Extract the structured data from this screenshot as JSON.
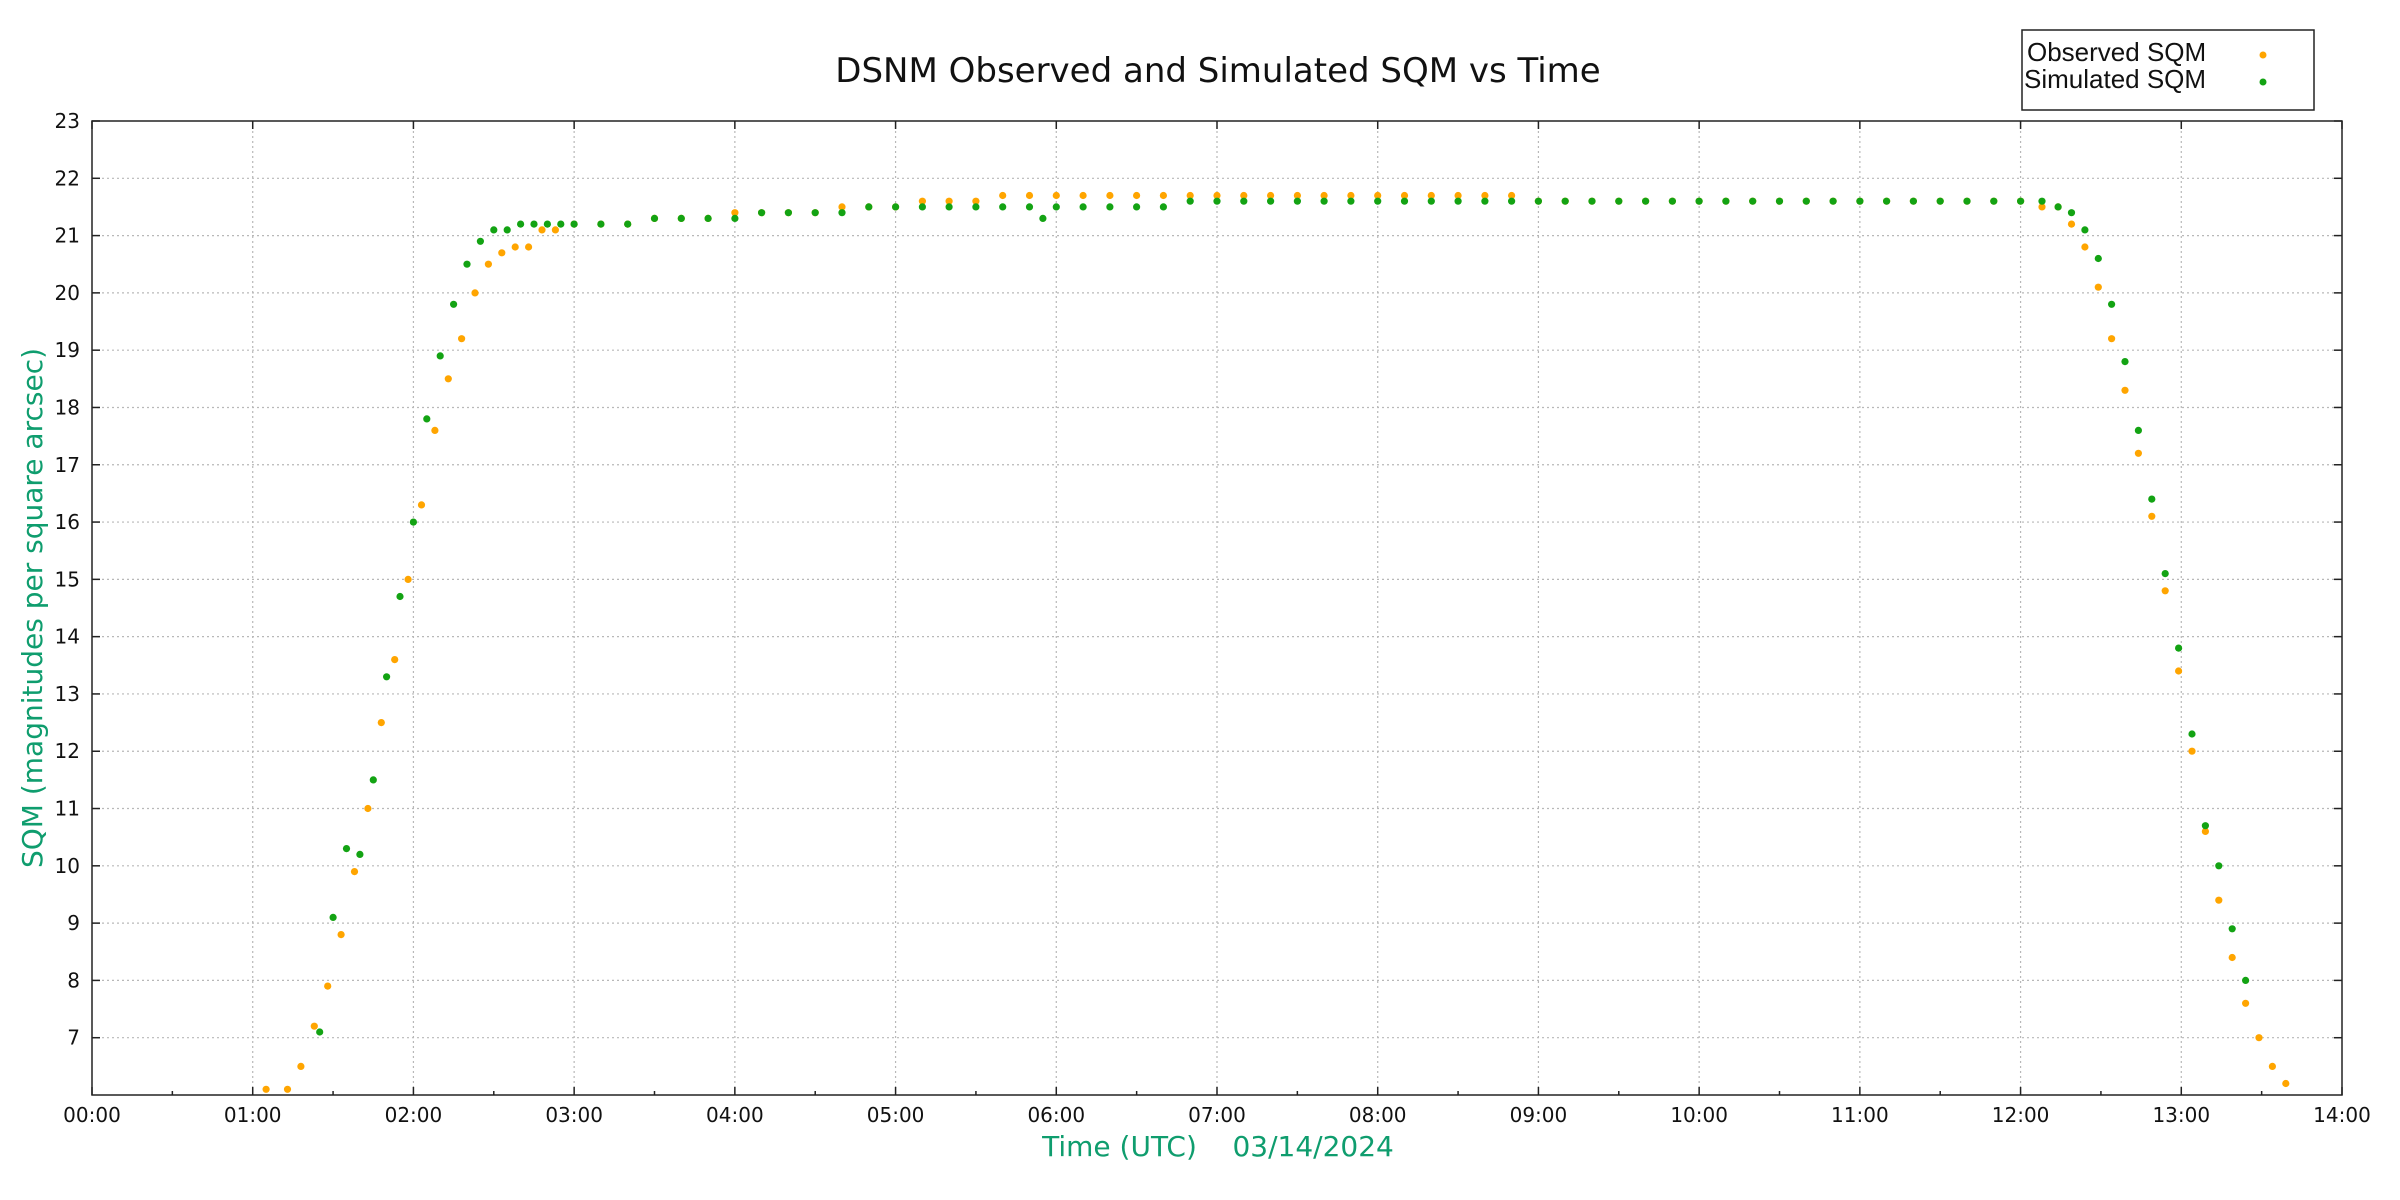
{
  "chart_data": {
    "type": "scatter",
    "title": "DSNM Observed and Simulated SQM vs Time",
    "xlabel": "Time (UTC)    03/14/2024",
    "ylabel": "SQM (magnitudes per square arcsec)",
    "xlim": [
      "00:00",
      "14:00"
    ],
    "ylim": [
      6,
      23
    ],
    "x_ticks": [
      "00:00",
      "01:00",
      "02:00",
      "03:00",
      "04:00",
      "05:00",
      "06:00",
      "07:00",
      "08:00",
      "09:00",
      "10:00",
      "11:00",
      "12:00",
      "13:00",
      "14:00"
    ],
    "y_ticks": [
      "7",
      "8",
      "9",
      "10",
      "11",
      "12",
      "13",
      "14",
      "15",
      "16",
      "17",
      "18",
      "19",
      "20",
      "21",
      "22",
      "23"
    ],
    "grid": true,
    "legend_position": "top-right",
    "colors": {
      "Observed SQM": "#ffa500",
      "Simulated SQM": "#13a313",
      "axis_label": "#0f9d6e"
    },
    "series": [
      {
        "name": "Observed SQM",
        "points": [
          [
            "01:05",
            6.1
          ],
          [
            "01:13",
            6.1
          ],
          [
            "01:18",
            6.5
          ],
          [
            "01:23",
            7.2
          ],
          [
            "01:28",
            7.9
          ],
          [
            "01:33",
            8.8
          ],
          [
            "01:38",
            9.9
          ],
          [
            "01:43",
            11.0
          ],
          [
            "01:48",
            12.5
          ],
          [
            "01:53",
            13.6
          ],
          [
            "01:58",
            15.0
          ],
          [
            "02:03",
            16.3
          ],
          [
            "02:08",
            17.6
          ],
          [
            "02:13",
            18.5
          ],
          [
            "02:18",
            19.2
          ],
          [
            "02:23",
            20.0
          ],
          [
            "02:28",
            20.5
          ],
          [
            "02:33",
            20.7
          ],
          [
            "02:38",
            20.8
          ],
          [
            "02:43",
            20.8
          ],
          [
            "02:48",
            21.1
          ],
          [
            "02:53",
            21.1
          ],
          [
            "03:00",
            21.2
          ],
          [
            "03:10",
            21.2
          ],
          [
            "03:20",
            21.2
          ],
          [
            "03:30",
            21.3
          ],
          [
            "03:40",
            21.3
          ],
          [
            "03:50",
            21.3
          ],
          [
            "04:00",
            21.4
          ],
          [
            "04:10",
            21.4
          ],
          [
            "04:20",
            21.4
          ],
          [
            "04:30",
            21.4
          ],
          [
            "04:40",
            21.5
          ],
          [
            "04:50",
            21.5
          ],
          [
            "05:00",
            21.5
          ],
          [
            "05:10",
            21.6
          ],
          [
            "05:20",
            21.6
          ],
          [
            "05:30",
            21.6
          ],
          [
            "05:40",
            21.7
          ],
          [
            "05:50",
            21.7
          ],
          [
            "06:00",
            21.7
          ],
          [
            "06:10",
            21.7
          ],
          [
            "06:20",
            21.7
          ],
          [
            "06:30",
            21.7
          ],
          [
            "06:40",
            21.7
          ],
          [
            "06:50",
            21.7
          ],
          [
            "07:00",
            21.7
          ],
          [
            "07:10",
            21.7
          ],
          [
            "07:20",
            21.7
          ],
          [
            "07:30",
            21.7
          ],
          [
            "07:40",
            21.7
          ],
          [
            "07:50",
            21.7
          ],
          [
            "08:00",
            21.7
          ],
          [
            "08:10",
            21.7
          ],
          [
            "08:20",
            21.7
          ],
          [
            "08:30",
            21.7
          ],
          [
            "08:40",
            21.7
          ],
          [
            "08:50",
            21.7
          ],
          [
            "09:00",
            21.6
          ],
          [
            "09:10",
            21.6
          ],
          [
            "09:20",
            21.6
          ],
          [
            "09:30",
            21.6
          ],
          [
            "09:40",
            21.6
          ],
          [
            "09:50",
            21.6
          ],
          [
            "10:00",
            21.6
          ],
          [
            "10:10",
            21.6
          ],
          [
            "10:20",
            21.6
          ],
          [
            "10:30",
            21.6
          ],
          [
            "10:40",
            21.6
          ],
          [
            "10:50",
            21.6
          ],
          [
            "11:00",
            21.6
          ],
          [
            "11:10",
            21.6
          ],
          [
            "11:20",
            21.6
          ],
          [
            "11:30",
            21.6
          ],
          [
            "11:40",
            21.6
          ],
          [
            "11:50",
            21.6
          ],
          [
            "12:00",
            21.6
          ],
          [
            "12:08",
            21.5
          ],
          [
            "12:14",
            21.5
          ],
          [
            "12:19",
            21.2
          ],
          [
            "12:24",
            20.8
          ],
          [
            "12:29",
            20.1
          ],
          [
            "12:34",
            19.2
          ],
          [
            "12:39",
            18.3
          ],
          [
            "12:44",
            17.2
          ],
          [
            "12:49",
            16.1
          ],
          [
            "12:54",
            14.8
          ],
          [
            "12:59",
            13.4
          ],
          [
            "13:04",
            12.0
          ],
          [
            "13:09",
            10.6
          ],
          [
            "13:14",
            9.4
          ],
          [
            "13:19",
            8.4
          ],
          [
            "13:24",
            7.6
          ],
          [
            "13:29",
            7.0
          ],
          [
            "13:34",
            6.5
          ],
          [
            "13:39",
            6.2
          ]
        ]
      },
      {
        "name": "Simulated SQM",
        "points": [
          [
            "01:25",
            7.1
          ],
          [
            "01:30",
            9.1
          ],
          [
            "01:35",
            10.3
          ],
          [
            "01:40",
            10.2
          ],
          [
            "01:45",
            11.5
          ],
          [
            "01:50",
            13.3
          ],
          [
            "01:55",
            14.7
          ],
          [
            "02:00",
            16.0
          ],
          [
            "02:05",
            17.8
          ],
          [
            "02:10",
            18.9
          ],
          [
            "02:15",
            19.8
          ],
          [
            "02:20",
            20.5
          ],
          [
            "02:25",
            20.9
          ],
          [
            "02:30",
            21.1
          ],
          [
            "02:35",
            21.1
          ],
          [
            "02:40",
            21.2
          ],
          [
            "02:45",
            21.2
          ],
          [
            "02:50",
            21.2
          ],
          [
            "02:55",
            21.2
          ],
          [
            "03:00",
            21.2
          ],
          [
            "03:10",
            21.2
          ],
          [
            "03:20",
            21.2
          ],
          [
            "03:30",
            21.3
          ],
          [
            "03:40",
            21.3
          ],
          [
            "03:50",
            21.3
          ],
          [
            "04:00",
            21.3
          ],
          [
            "04:10",
            21.4
          ],
          [
            "04:20",
            21.4
          ],
          [
            "04:30",
            21.4
          ],
          [
            "04:40",
            21.4
          ],
          [
            "04:50",
            21.5
          ],
          [
            "05:00",
            21.5
          ],
          [
            "05:10",
            21.5
          ],
          [
            "05:20",
            21.5
          ],
          [
            "05:30",
            21.5
          ],
          [
            "05:40",
            21.5
          ],
          [
            "05:50",
            21.5
          ],
          [
            "05:55",
            21.3
          ],
          [
            "06:00",
            21.5
          ],
          [
            "06:10",
            21.5
          ],
          [
            "06:20",
            21.5
          ],
          [
            "06:30",
            21.5
          ],
          [
            "06:40",
            21.5
          ],
          [
            "06:50",
            21.6
          ],
          [
            "07:00",
            21.6
          ],
          [
            "07:10",
            21.6
          ],
          [
            "07:20",
            21.6
          ],
          [
            "07:30",
            21.6
          ],
          [
            "07:40",
            21.6
          ],
          [
            "07:50",
            21.6
          ],
          [
            "08:00",
            21.6
          ],
          [
            "08:10",
            21.6
          ],
          [
            "08:20",
            21.6
          ],
          [
            "08:30",
            21.6
          ],
          [
            "08:40",
            21.6
          ],
          [
            "08:50",
            21.6
          ],
          [
            "09:00",
            21.6
          ],
          [
            "09:10",
            21.6
          ],
          [
            "09:20",
            21.6
          ],
          [
            "09:30",
            21.6
          ],
          [
            "09:40",
            21.6
          ],
          [
            "09:50",
            21.6
          ],
          [
            "10:00",
            21.6
          ],
          [
            "10:10",
            21.6
          ],
          [
            "10:20",
            21.6
          ],
          [
            "10:30",
            21.6
          ],
          [
            "10:40",
            21.6
          ],
          [
            "10:50",
            21.6
          ],
          [
            "11:00",
            21.6
          ],
          [
            "11:10",
            21.6
          ],
          [
            "11:20",
            21.6
          ],
          [
            "11:30",
            21.6
          ],
          [
            "11:40",
            21.6
          ],
          [
            "11:50",
            21.6
          ],
          [
            "12:00",
            21.6
          ],
          [
            "12:08",
            21.6
          ],
          [
            "12:14",
            21.5
          ],
          [
            "12:19",
            21.4
          ],
          [
            "12:24",
            21.1
          ],
          [
            "12:29",
            20.6
          ],
          [
            "12:34",
            19.8
          ],
          [
            "12:39",
            18.8
          ],
          [
            "12:44",
            17.6
          ],
          [
            "12:49",
            16.4
          ],
          [
            "12:54",
            15.1
          ],
          [
            "12:59",
            13.8
          ],
          [
            "13:04",
            12.3
          ],
          [
            "13:09",
            10.7
          ],
          [
            "13:14",
            10.0
          ],
          [
            "13:19",
            8.9
          ],
          [
            "13:24",
            8.0
          ]
        ]
      }
    ]
  }
}
